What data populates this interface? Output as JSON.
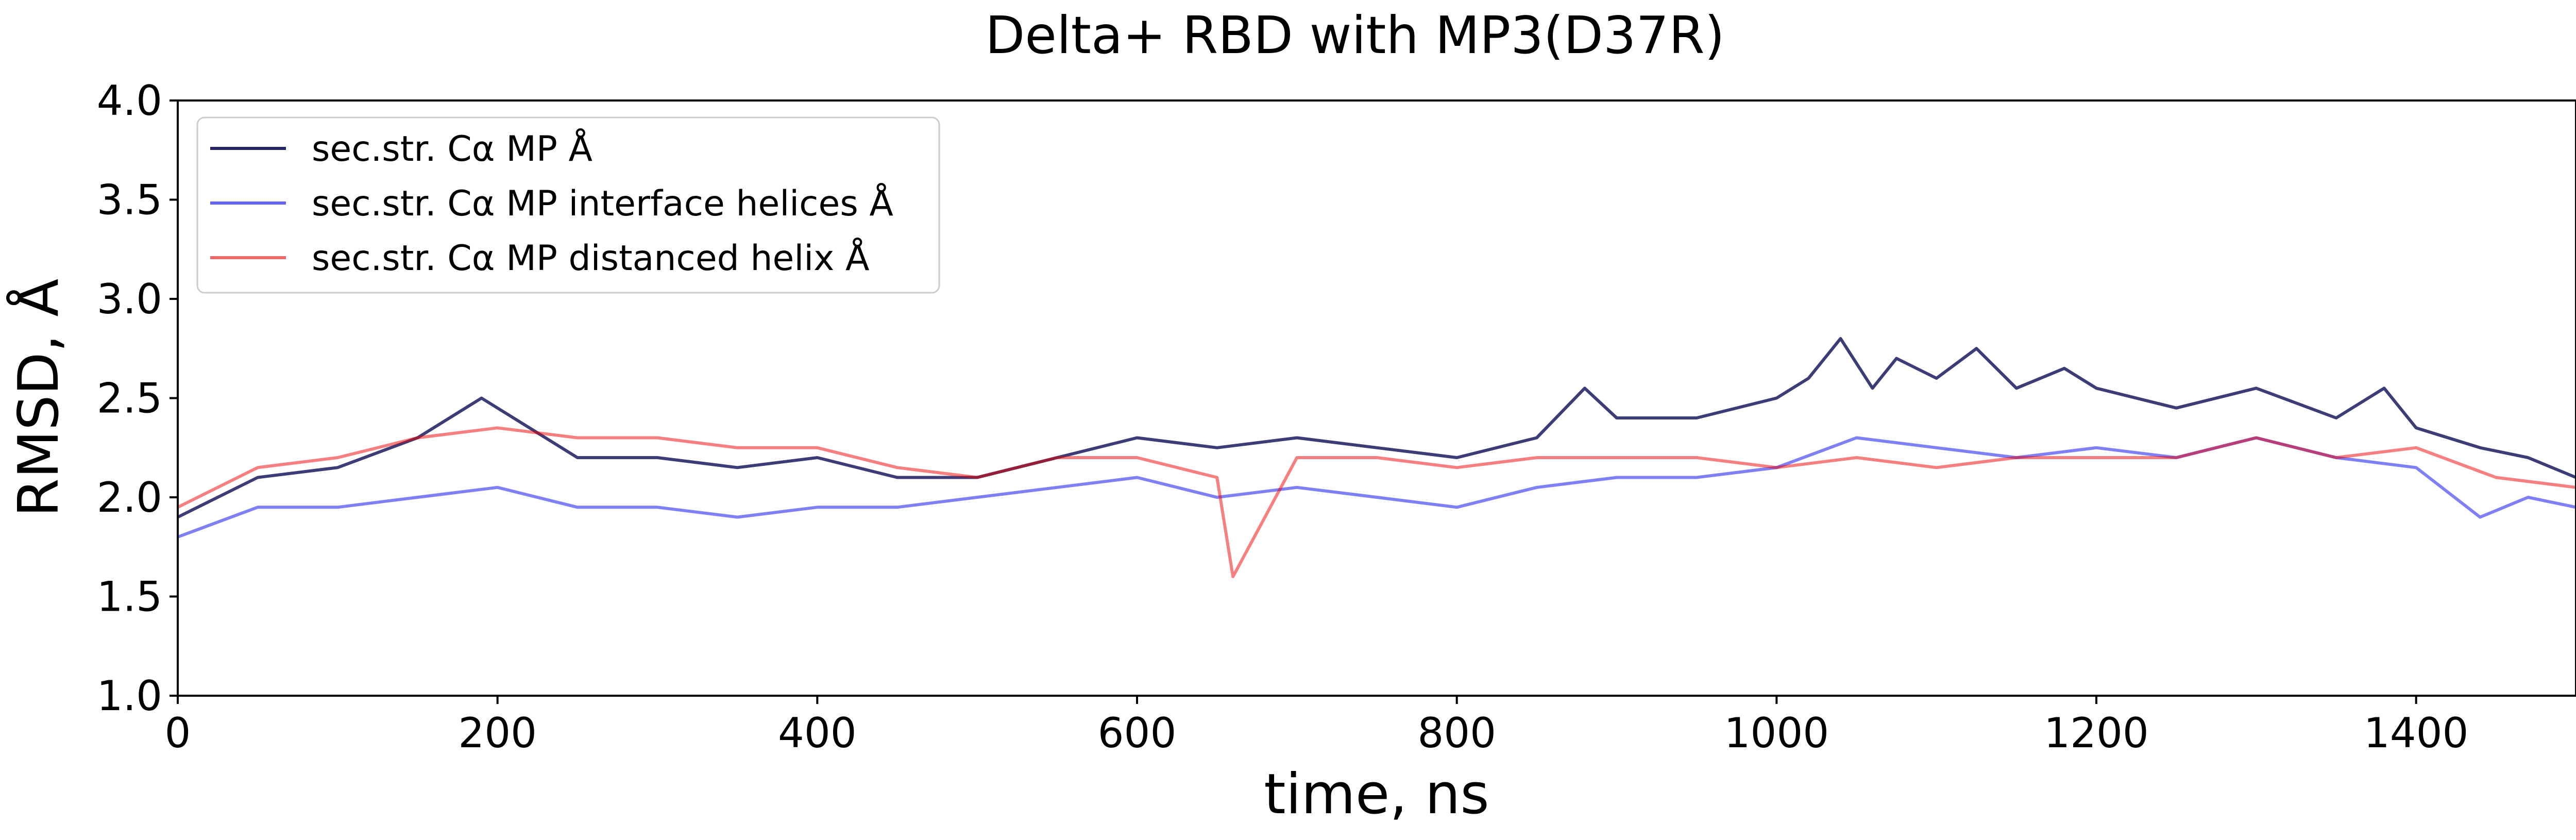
{
  "chart_data": {
    "type": "line",
    "title": "Delta+ RBD with MP3(D37R)",
    "xlabel": "time, ns",
    "ylabel": "RMSD, Å",
    "xlim": [
      0,
      1500
    ],
    "ylim": [
      1.0,
      4.0
    ],
    "xticks": [
      0,
      200,
      400,
      600,
      800,
      1000,
      1200,
      1400
    ],
    "yticks": [
      1.0,
      1.5,
      2.0,
      2.5,
      3.0,
      3.5,
      4.0
    ],
    "grid": false,
    "legend_position": "upper-left",
    "series": [
      {
        "name": "sec.str. Cα MP Å",
        "color": "#1a1a5e",
        "opacity": 0.85,
        "x": [
          0,
          50,
          100,
          150,
          190,
          250,
          300,
          350,
          400,
          450,
          500,
          550,
          600,
          650,
          700,
          750,
          800,
          850,
          880,
          900,
          950,
          1000,
          1020,
          1040,
          1060,
          1075,
          1100,
          1125,
          1150,
          1180,
          1200,
          1250,
          1300,
          1350,
          1380,
          1400,
          1440,
          1470,
          1500
        ],
        "y": [
          1.9,
          2.1,
          2.15,
          2.3,
          2.5,
          2.2,
          2.2,
          2.15,
          2.2,
          2.1,
          2.1,
          2.2,
          2.3,
          2.25,
          2.3,
          2.25,
          2.2,
          2.3,
          2.55,
          2.4,
          2.4,
          2.5,
          2.6,
          2.8,
          2.55,
          2.7,
          2.6,
          2.75,
          2.55,
          2.65,
          2.55,
          2.45,
          2.55,
          2.4,
          2.55,
          2.35,
          2.25,
          2.2,
          2.1
        ]
      },
      {
        "name": "sec.str. Cα MP interface helices Å",
        "color": "#0000ee",
        "opacity": 0.5,
        "x": [
          0,
          50,
          100,
          150,
          200,
          250,
          300,
          350,
          400,
          450,
          500,
          550,
          600,
          650,
          700,
          750,
          800,
          850,
          900,
          950,
          1000,
          1050,
          1100,
          1150,
          1200,
          1250,
          1300,
          1350,
          1400,
          1440,
          1470,
          1500
        ],
        "y": [
          1.8,
          1.95,
          1.95,
          2.0,
          2.05,
          1.95,
          1.95,
          1.9,
          1.95,
          1.95,
          2.0,
          2.05,
          2.1,
          2.0,
          2.05,
          2.0,
          1.95,
          2.05,
          2.1,
          2.1,
          2.15,
          2.3,
          2.25,
          2.2,
          2.25,
          2.2,
          2.3,
          2.2,
          2.15,
          1.9,
          2.0,
          1.95
        ]
      },
      {
        "name": "sec.str. Cα MP distanced helix Å",
        "color": "#ee0000",
        "opacity": 0.5,
        "x": [
          0,
          50,
          100,
          150,
          200,
          250,
          300,
          350,
          400,
          450,
          500,
          550,
          600,
          650,
          660,
          700,
          750,
          800,
          850,
          900,
          950,
          1000,
          1050,
          1100,
          1150,
          1200,
          1250,
          1300,
          1350,
          1400,
          1450,
          1500
        ],
        "y": [
          1.95,
          2.15,
          2.2,
          2.3,
          2.35,
          2.3,
          2.3,
          2.25,
          2.25,
          2.15,
          2.1,
          2.2,
          2.2,
          2.1,
          1.6,
          2.2,
          2.2,
          2.15,
          2.2,
          2.2,
          2.2,
          2.15,
          2.2,
          2.15,
          2.2,
          2.2,
          2.2,
          2.3,
          2.2,
          2.25,
          2.1,
          2.05
        ]
      }
    ]
  }
}
